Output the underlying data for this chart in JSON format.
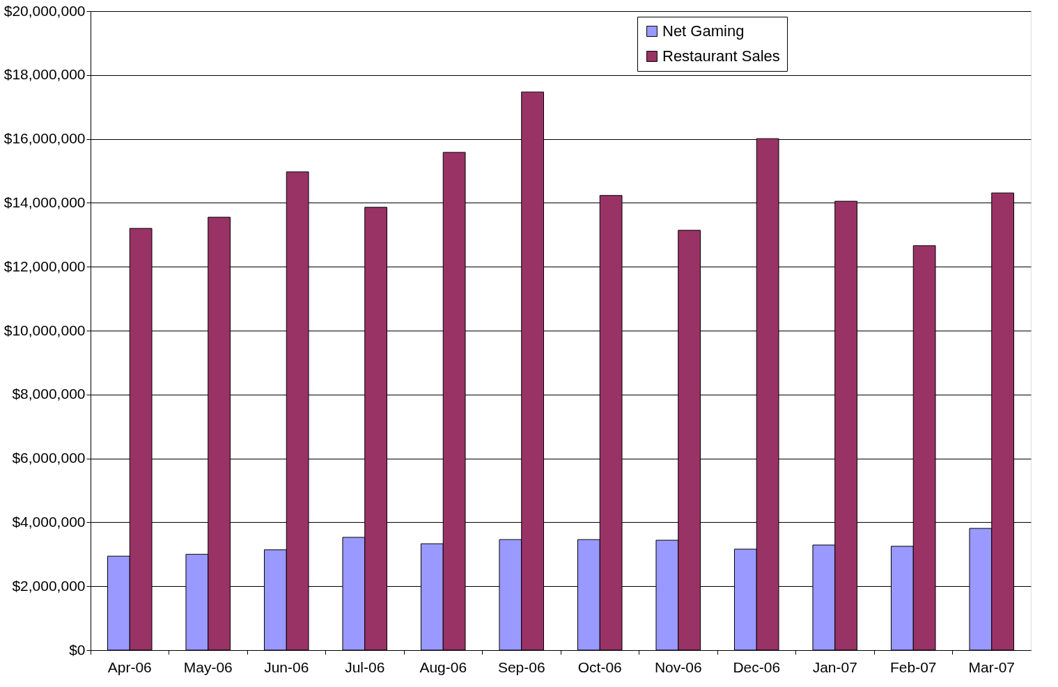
{
  "chart_data": {
    "type": "bar",
    "categories": [
      "Apr-06",
      "May-06",
      "Jun-06",
      "Jul-06",
      "Aug-06",
      "Sep-06",
      "Oct-06",
      "Nov-06",
      "Dec-06",
      "Jan-07",
      "Feb-07",
      "Mar-07"
    ],
    "series": [
      {
        "name": "Net Gaming",
        "color": "#9999ff",
        "values": [
          2940000,
          3000000,
          3140000,
          3530000,
          3330000,
          3460000,
          3460000,
          3440000,
          3160000,
          3290000,
          3250000,
          3810000
        ]
      },
      {
        "name": "Restaurant Sales",
        "color": "#993366",
        "values": [
          13200000,
          13550000,
          14970000,
          13860000,
          15580000,
          17470000,
          14230000,
          13140000,
          16010000,
          14050000,
          12660000,
          14310000
        ]
      }
    ],
    "ylim": [
      0,
      20000000
    ],
    "yticks": [
      {
        "value": 0,
        "label": "$0"
      },
      {
        "value": 2000000,
        "label": "$2,000,000"
      },
      {
        "value": 4000000,
        "label": "$4,000,000"
      },
      {
        "value": 6000000,
        "label": "$6,000,000"
      },
      {
        "value": 8000000,
        "label": "$8,000,000"
      },
      {
        "value": 10000000,
        "label": "$10,000,000"
      },
      {
        "value": 12000000,
        "label": "$12,000,000"
      },
      {
        "value": 14000000,
        "label": "$14,000,000"
      },
      {
        "value": 16000000,
        "label": "$16,000,000"
      },
      {
        "value": 18000000,
        "label": "$18,000,000"
      },
      {
        "value": 20000000,
        "label": "$20,000,000"
      }
    ],
    "grid": "y",
    "legend": "top right"
  }
}
